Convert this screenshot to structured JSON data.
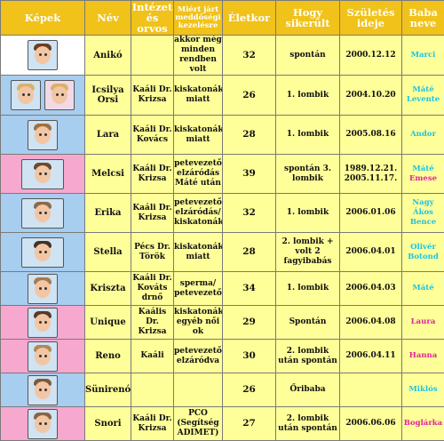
{
  "headers": {
    "kepek": "Képek",
    "nev": "Név",
    "intezet": "Intézet és orvos",
    "miert": "Miért járt meddőségi kezelésre",
    "eletkor": "Életkor",
    "hogy": "Hogy sikerült",
    "szuletes": "Születés ideje",
    "baba": "Baba neve"
  },
  "colors": {
    "header": "#f0c21a",
    "cell": "#ffff99",
    "boy": "#19c3e8",
    "girl": "#e0249a",
    "blue_img": "#a7cdef",
    "pink_img": "#f6a8cf"
  },
  "rows": [
    {
      "nev": "Anikó",
      "intezet": "",
      "miert": "akkor még minden rendben volt",
      "eletkor": "32",
      "hogy": "spontán",
      "szuletes": "2000.12.12",
      "baba": [
        {
          "text": "Marci",
          "sex": "boy"
        }
      ]
    },
    {
      "nev": "Icsilya Orsi",
      "intezet": "Kaáli Dr. Krizsa",
      "miert": "kiskatonák miatt",
      "eletkor": "26",
      "hogy": "1. lombik",
      "szuletes": "2004.10.20",
      "baba": [
        {
          "text": "Máté",
          "sex": "boy"
        },
        {
          "text": "Levente",
          "sex": "boy"
        }
      ]
    },
    {
      "nev": "Lara",
      "intezet": "Kaáli Dr. Kovács",
      "miert": "kiskatonák miatt",
      "eletkor": "28",
      "hogy": "1. lombik",
      "szuletes": "2005.08.16",
      "baba": [
        {
          "text": "Andor",
          "sex": "boy"
        }
      ]
    },
    {
      "nev": "Melcsi",
      "intezet": "Kaáli Dr. Krizsa",
      "miert": "petevezető elzáródás Máté után",
      "eletkor": "39",
      "hogy": "spontán 3. lombik",
      "szuletes": "1989.12.21. 2005.11.17.",
      "baba": [
        {
          "text": "Máté",
          "sex": "boy"
        },
        {
          "text": "Emese",
          "sex": "girl"
        }
      ]
    },
    {
      "nev": "Erika",
      "intezet": "Kaáli Dr. Krizsa",
      "miert": "petevezető elzáródás/ kiskatonák",
      "eletkor": "32",
      "hogy": "1. lombik",
      "szuletes": "2006.01.06",
      "baba": [
        {
          "text": "Nagy Ákos Bence",
          "sex": "boy"
        }
      ]
    },
    {
      "nev": "Stella",
      "intezet": "Pécs Dr. Török",
      "miert": "kiskatonák miatt",
      "eletkor": "28",
      "hogy": "2. lombik + volt 2 fagyibabás",
      "szuletes": "2006.04.01",
      "baba": [
        {
          "text": "Olivér",
          "sex": "boy"
        },
        {
          "text": "Botond",
          "sex": "boy"
        }
      ]
    },
    {
      "nev": "Kriszta",
      "intezet": "Kaáli Dr. Kováts drnő",
      "miert": "sperma/ petevezető",
      "eletkor": "34",
      "hogy": "1. lombik",
      "szuletes": "2006.04.03",
      "baba": [
        {
          "text": "Máté",
          "sex": "boy"
        }
      ]
    },
    {
      "nev": "Unique",
      "intezet": "Kaális Dr. Krizsa",
      "miert": "kiskatonák egyéb női ok",
      "eletkor": "29",
      "hogy": "Spontán",
      "szuletes": "2006.04.08",
      "baba": [
        {
          "text": "Laura",
          "sex": "girl"
        }
      ]
    },
    {
      "nev": "Reno",
      "intezet": "Kaáli",
      "miert": "petevezetők elzáródva",
      "eletkor": "30",
      "hogy": "2. lombik után spontán",
      "szuletes": "2006.04.11",
      "baba": [
        {
          "text": "Hanna",
          "sex": "girl"
        }
      ]
    },
    {
      "nev": "Sünirenóca",
      "intezet": "",
      "miert": "",
      "eletkor": "26",
      "hogy": "Őribaba",
      "szuletes": "",
      "baba": [
        {
          "text": "Miklós",
          "sex": "boy"
        }
      ]
    },
    {
      "nev": "Snori",
      "intezet": "Kaáli Dr. Krizsa",
      "miert": "PCO (Segítség ADIMET)",
      "eletkor": "27",
      "hogy": "2. lombik után spontán",
      "szuletes": "2006.06.06",
      "baba": [
        {
          "text": "Boglárka",
          "sex": "girl"
        }
      ]
    }
  ]
}
